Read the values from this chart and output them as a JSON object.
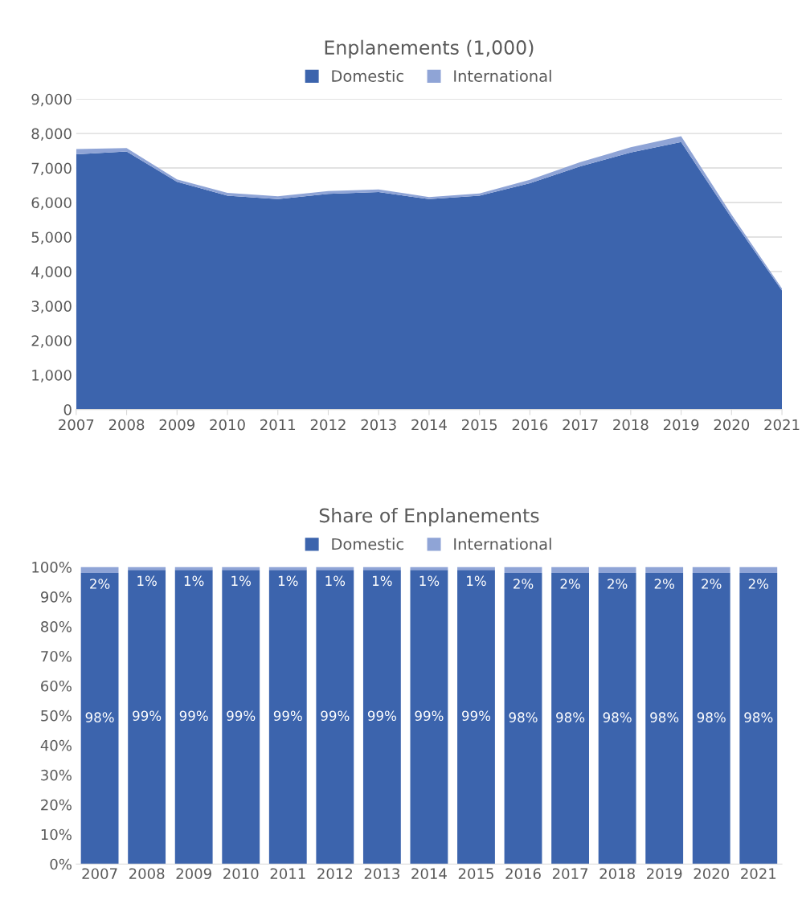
{
  "chart_data": [
    {
      "type": "area",
      "stacked": true,
      "title": "Enplanements (1,000)",
      "categories": [
        "2007",
        "2008",
        "2009",
        "2010",
        "2011",
        "2012",
        "2013",
        "2014",
        "2015",
        "2016",
        "2017",
        "2018",
        "2019",
        "2020",
        "2021"
      ],
      "series": [
        {
          "name": "Domestic",
          "color": "#3c64ad",
          "values": [
            7400,
            7480,
            6600,
            6200,
            6100,
            6250,
            6300,
            6100,
            6200,
            6560,
            7050,
            7450,
            7750,
            5550,
            3450
          ]
        },
        {
          "name": "International",
          "color": "#8fa4d6",
          "values": [
            150,
            100,
            70,
            80,
            80,
            80,
            80,
            60,
            60,
            100,
            120,
            150,
            170,
            100,
            60
          ]
        }
      ],
      "ylim": [
        0,
        9000
      ],
      "yticks": [
        {
          "value": 0,
          "label": "0"
        },
        {
          "value": 1000,
          "label": "1,000"
        },
        {
          "value": 2000,
          "label": "2,000"
        },
        {
          "value": 3000,
          "label": "3,000"
        },
        {
          "value": 4000,
          "label": "4,000"
        },
        {
          "value": 5000,
          "label": "5,000"
        },
        {
          "value": 6000,
          "label": "6,000"
        },
        {
          "value": 7000,
          "label": "7,000"
        },
        {
          "value": 8000,
          "label": "8,000"
        },
        {
          "value": 9000,
          "label": "9,000"
        }
      ],
      "grid": "y",
      "legend": "top"
    },
    {
      "type": "bar",
      "stacked": true,
      "title": "Share of Enplanements",
      "categories": [
        "2007",
        "2008",
        "2009",
        "2010",
        "2011",
        "2012",
        "2013",
        "2014",
        "2015",
        "2016",
        "2017",
        "2018",
        "2019",
        "2020",
        "2021"
      ],
      "series": [
        {
          "name": "Domestic",
          "color": "#3c64ad",
          "values": [
            98,
            99,
            99,
            99,
            99,
            99,
            99,
            99,
            99,
            98,
            98,
            98,
            98,
            98,
            98
          ],
          "value_labels": [
            "98%",
            "99%",
            "99%",
            "99%",
            "99%",
            "99%",
            "99%",
            "99%",
            "99%",
            "98%",
            "98%",
            "98%",
            "98%",
            "98%",
            "98%"
          ]
        },
        {
          "name": "International",
          "color": "#8fa4d6",
          "values": [
            2,
            1,
            1,
            1,
            1,
            1,
            1,
            1,
            1,
            2,
            2,
            2,
            2,
            2,
            2
          ],
          "value_labels": [
            "2%",
            "1%",
            "1%",
            "1%",
            "1%",
            "1%",
            "1%",
            "1%",
            "1%",
            "2%",
            "2%",
            "2%",
            "2%",
            "2%",
            "2%"
          ]
        }
      ],
      "ylim": [
        0,
        100
      ],
      "yticks": [
        {
          "value": 0,
          "label": "0%"
        },
        {
          "value": 10,
          "label": "10%"
        },
        {
          "value": 20,
          "label": "20%"
        },
        {
          "value": 30,
          "label": "30%"
        },
        {
          "value": 40,
          "label": "40%"
        },
        {
          "value": 50,
          "label": "50%"
        },
        {
          "value": 60,
          "label": "60%"
        },
        {
          "value": 70,
          "label": "70%"
        },
        {
          "value": 80,
          "label": "80%"
        },
        {
          "value": 90,
          "label": "90%"
        },
        {
          "value": 100,
          "label": "100%"
        }
      ],
      "grid": false,
      "legend": "top"
    }
  ]
}
